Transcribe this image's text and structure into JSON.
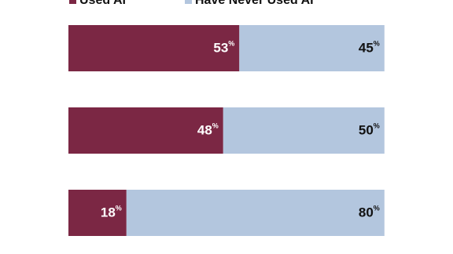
{
  "chart_data": {
    "type": "stacked-bar",
    "orientation": "horizontal",
    "categories": [
      null,
      null,
      null
    ],
    "series": [
      {
        "name": "Used AI",
        "color": "#7b2744",
        "label_color": "#ffffff",
        "values": [
          53,
          48,
          18
        ],
        "value_labels": [
          "53%",
          "48%",
          "18%"
        ]
      },
      {
        "name": "Have Never Used AI",
        "color": "#b3c6de",
        "label_color": "#111111",
        "values": [
          45,
          50,
          80
        ],
        "value_labels": [
          "45%",
          "50%",
          "80%"
        ]
      }
    ]
  }
}
